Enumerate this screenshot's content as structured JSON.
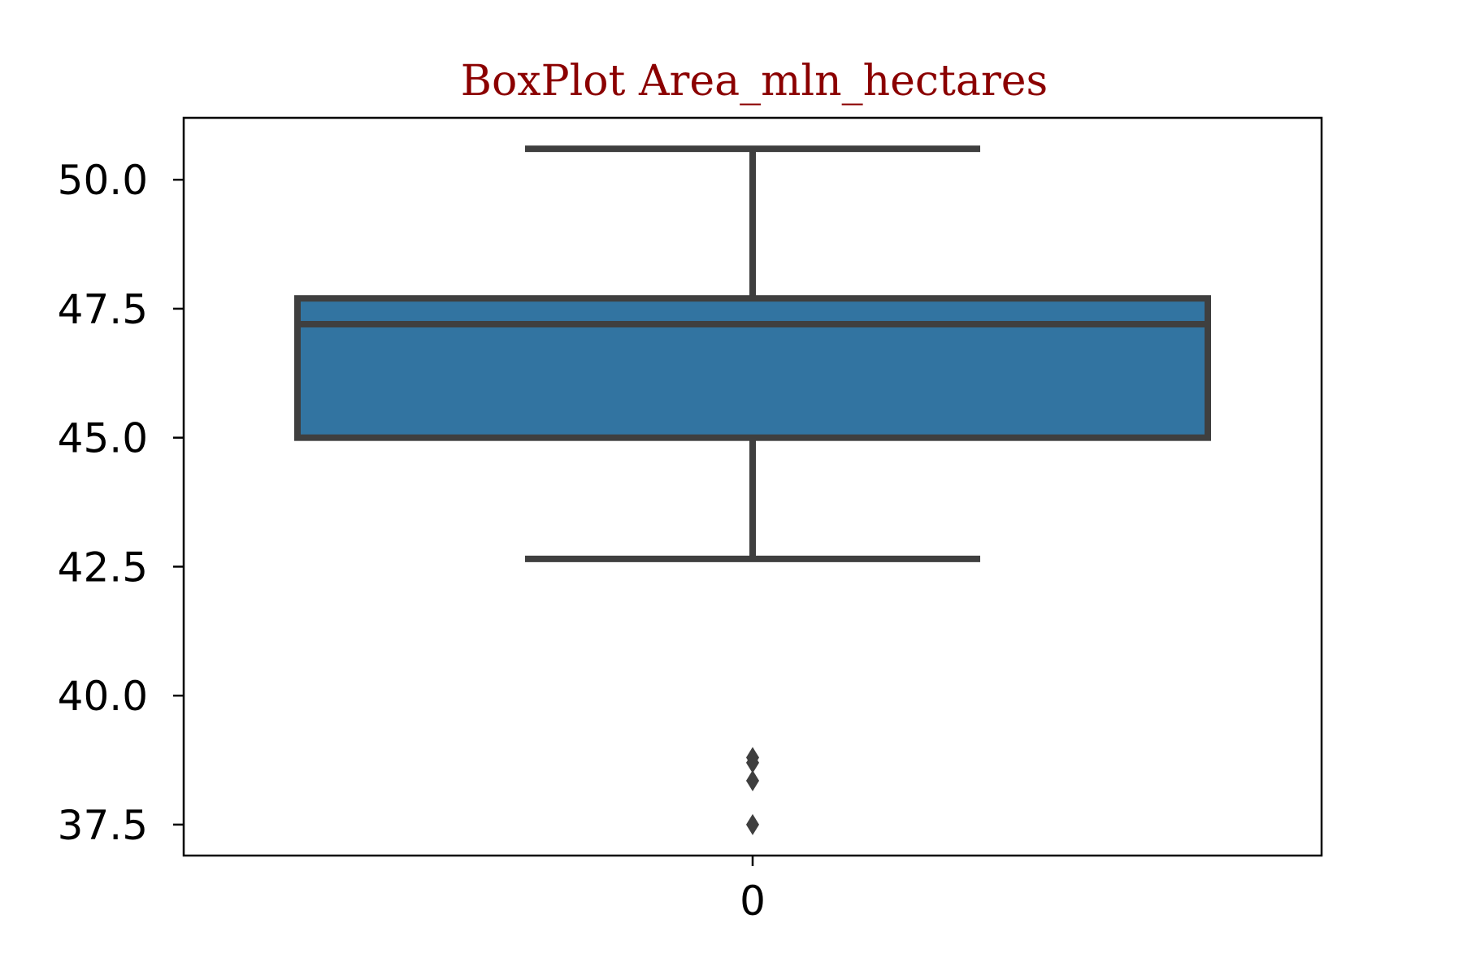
{
  "chart_data": {
    "type": "box",
    "title": "BoxPlot Area_mln_hectares",
    "xlabel": "",
    "ylabel": "",
    "categories": [
      "0"
    ],
    "ylim": [
      36.9,
      51.2
    ],
    "yticks": [
      37.5,
      40.0,
      42.5,
      45.0,
      47.5,
      50.0
    ],
    "ytick_labels": [
      "37.5",
      "40.0",
      "42.5",
      "45.0",
      "47.5",
      "50.0"
    ],
    "grid": false,
    "series": [
      {
        "whisker_low": 42.65,
        "q1": 45.0,
        "median": 47.2,
        "q3": 47.7,
        "whisker_high": 50.6,
        "outliers": [
          38.8,
          38.7,
          38.35,
          37.5
        ]
      }
    ],
    "colors": {
      "box_fill": "#3274a1",
      "box_edge": "#3f3f3f",
      "title": "#8b0000",
      "axes": "#000000"
    }
  }
}
